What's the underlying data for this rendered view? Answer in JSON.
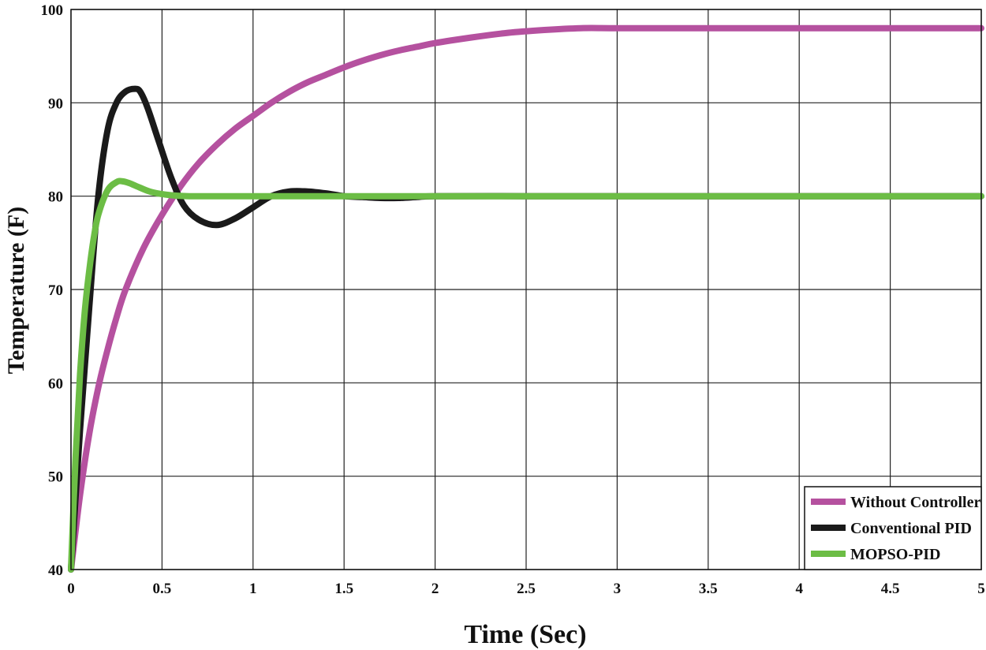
{
  "chart_data": {
    "type": "line",
    "title": "",
    "xlabel": "Time (Sec)",
    "ylabel": "Temperature (F)",
    "xlim": [
      0,
      5
    ],
    "ylim": [
      40,
      100
    ],
    "xticks": [
      "0",
      "0.5",
      "1",
      "1.5",
      "2",
      "2.5",
      "3",
      "3.5",
      "4",
      "4.5",
      "5"
    ],
    "yticks": [
      "40",
      "50",
      "60",
      "70",
      "80",
      "90",
      "100"
    ],
    "grid": true,
    "legend_position": "bottom-right",
    "series": [
      {
        "name": "Without Controller",
        "color": "#b5519f",
        "x": [
          0,
          0.05,
          0.1,
          0.15,
          0.2,
          0.25,
          0.3,
          0.4,
          0.5,
          0.6,
          0.7,
          0.8,
          0.9,
          1.0,
          1.1,
          1.2,
          1.3,
          1.4,
          1.5,
          1.6,
          1.7,
          1.8,
          1.9,
          2.0,
          2.2,
          2.4,
          2.6,
          2.8,
          3.0,
          3.5,
          4.0,
          4.5,
          5.0
        ],
        "y": [
          40,
          48,
          54.5,
          59.5,
          63.5,
          67,
          70,
          74.5,
          78,
          81,
          83.5,
          85.5,
          87.2,
          88.6,
          90,
          91.2,
          92.2,
          93,
          93.8,
          94.5,
          95.1,
          95.6,
          96,
          96.4,
          97,
          97.5,
          97.8,
          98,
          98,
          98,
          98,
          98,
          98
        ]
      },
      {
        "name": "Conventional PID",
        "color": "#1a1a1a",
        "x": [
          0,
          0.05,
          0.1,
          0.15,
          0.2,
          0.25,
          0.3,
          0.35,
          0.38,
          0.42,
          0.48,
          0.55,
          0.62,
          0.7,
          0.8,
          0.9,
          1.0,
          1.1,
          1.2,
          1.3,
          1.4,
          1.5,
          1.6,
          1.7,
          1.8,
          1.9,
          2.0,
          2.5,
          3.0,
          4.0,
          5.0
        ],
        "y": [
          40,
          55,
          68,
          80,
          87,
          90,
          91.2,
          91.5,
          91.2,
          89.5,
          86,
          82,
          79,
          77.5,
          76.9,
          77.6,
          78.8,
          80,
          80.5,
          80.5,
          80.3,
          80,
          79.9,
          79.8,
          79.8,
          79.9,
          80,
          80,
          80,
          80,
          80
        ]
      },
      {
        "name": "MOPSO-PID",
        "color": "#6cbd45",
        "x": [
          0,
          0.025,
          0.05,
          0.075,
          0.1,
          0.125,
          0.15,
          0.2,
          0.25,
          0.28,
          0.32,
          0.38,
          0.45,
          0.55,
          0.65,
          0.8,
          1.0,
          2.0,
          3.0,
          4.0,
          5.0
        ],
        "y": [
          40,
          52,
          61,
          67.5,
          72,
          75.5,
          78,
          80.6,
          81.5,
          81.6,
          81.4,
          80.9,
          80.4,
          80.1,
          80,
          80,
          80,
          80,
          80,
          80,
          80
        ]
      }
    ]
  }
}
